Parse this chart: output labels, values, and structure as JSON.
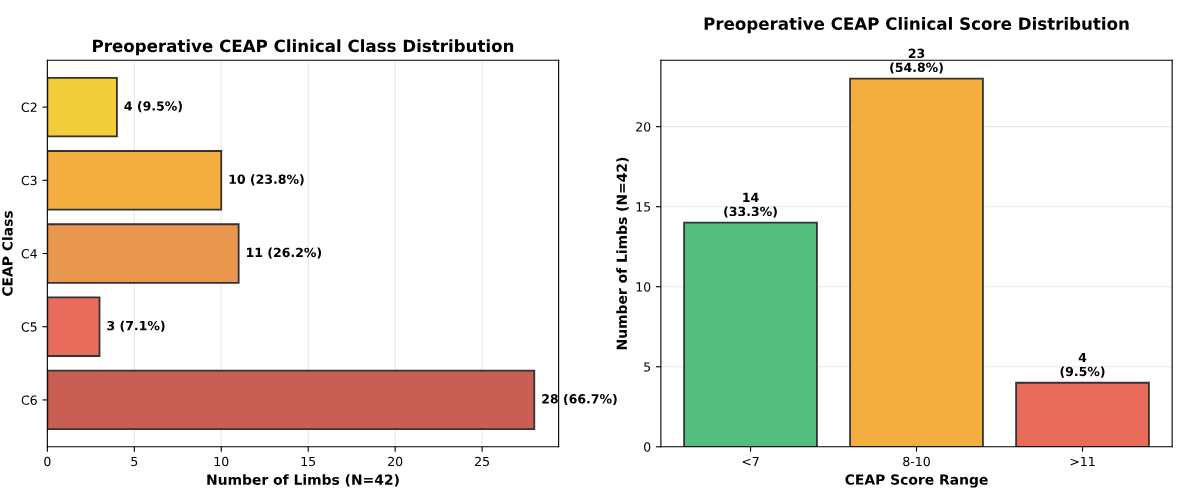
{
  "chart_data": [
    {
      "type": "bar",
      "orientation": "horizontal",
      "title": "Preoperative CEAP Clinical Class Distribution",
      "xlabel": "Number of Limbs (N=42)",
      "ylabel": "CEAP Class",
      "categories": [
        "C2",
        "C3",
        "C4",
        "C5",
        "C6"
      ],
      "values": [
        4,
        10,
        11,
        3,
        28
      ],
      "colors": [
        "#f1cd3c",
        "#f4ae3f",
        "#e9964f",
        "#e96b5c",
        "#c95e52"
      ],
      "value_labels": [
        "4 (9.5%)",
        "10 (23.8%)",
        "11 (26.2%)",
        "3 (7.1%)",
        "28 (66.7%)"
      ],
      "xlim": [
        0,
        29.4
      ],
      "xticks": [
        0,
        5,
        10,
        15,
        20,
        25
      ],
      "grid": "x"
    },
    {
      "type": "bar",
      "title": "Preoperative CEAP Clinical Score Distribution",
      "xlabel": "CEAP Score Range",
      "ylabel": "Number of Limbs (N=42)",
      "categories": [
        "<7",
        "8-10",
        ">11"
      ],
      "values": [
        14,
        23,
        4
      ],
      "colors": [
        "#52bd7c",
        "#f4ae3f",
        "#e96b5c"
      ],
      "value_labels": [
        "14\n(33.3%)",
        "23\n(54.8%)",
        "4\n(9.5%)"
      ],
      "ylim": [
        0,
        24.15
      ],
      "yticks": [
        0,
        5,
        10,
        15,
        20
      ],
      "grid": "y"
    }
  ]
}
